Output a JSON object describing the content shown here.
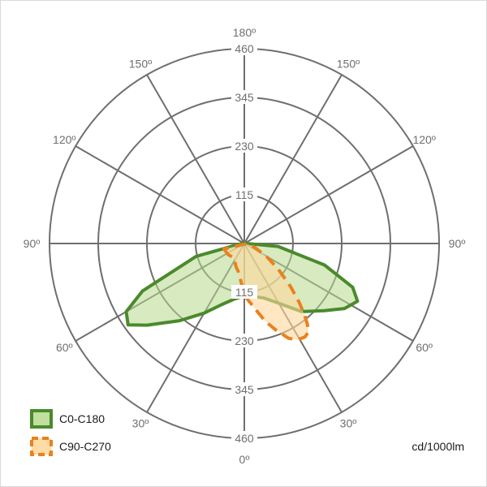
{
  "chart_data": {
    "type": "polar",
    "unit": "cd/1000lm",
    "radial_axis": {
      "max": 460,
      "ticks": [
        115,
        230,
        345,
        460
      ]
    },
    "angle_ticks": [
      {
        "angle": 180,
        "label": "180º",
        "side": "top"
      },
      {
        "angle": 150,
        "label": "150º",
        "side": "left"
      },
      {
        "angle": 150,
        "label": "150º",
        "side": "right"
      },
      {
        "angle": 120,
        "label": "120º",
        "side": "left"
      },
      {
        "angle": 120,
        "label": "120º",
        "side": "right"
      },
      {
        "angle": 90,
        "label": "90º",
        "side": "left"
      },
      {
        "angle": 90,
        "label": "90º",
        "side": "right"
      },
      {
        "angle": 60,
        "label": "60º",
        "side": "left"
      },
      {
        "angle": 60,
        "label": "60º",
        "side": "right"
      },
      {
        "angle": 30,
        "label": "30º",
        "side": "left"
      },
      {
        "angle": 30,
        "label": "30º",
        "side": "right"
      },
      {
        "angle": 0,
        "label": "0º",
        "side": "bottom"
      }
    ],
    "series": [
      {
        "name": "C0-C180",
        "stroke": "#4a8a2c",
        "fill": "#b6d98d",
        "fill_opacity": 0.55,
        "dashed": false,
        "points": [
          {
            "angle": -90,
            "value": 6
          },
          {
            "angle": -75,
            "value": 118
          },
          {
            "angle": -65,
            "value": 265
          },
          {
            "angle": -60,
            "value": 322
          },
          {
            "angle": -55,
            "value": 335
          },
          {
            "angle": -50,
            "value": 300
          },
          {
            "angle": -40,
            "value": 238
          },
          {
            "angle": -30,
            "value": 190
          },
          {
            "angle": -20,
            "value": 153
          },
          {
            "angle": -10,
            "value": 133
          },
          {
            "angle": 0,
            "value": 124
          },
          {
            "angle": 10,
            "value": 127
          },
          {
            "angle": 20,
            "value": 137
          },
          {
            "angle": 30,
            "value": 163
          },
          {
            "angle": 40,
            "value": 210
          },
          {
            "angle": 50,
            "value": 247
          },
          {
            "angle": 57,
            "value": 282
          },
          {
            "angle": 63,
            "value": 300
          },
          {
            "angle": 68,
            "value": 276
          },
          {
            "angle": 75,
            "value": 196
          },
          {
            "angle": 85,
            "value": 80
          },
          {
            "angle": 90,
            "value": 6
          }
        ]
      },
      {
        "name": "C90-C270",
        "stroke": "#e8821e",
        "fill": "#ffd79b",
        "fill_opacity": 0.6,
        "dashed": true,
        "points": [
          {
            "angle": -75,
            "value": 50
          },
          {
            "angle": -55,
            "value": 46
          },
          {
            "angle": -35,
            "value": 42
          },
          {
            "angle": -20,
            "value": 58
          },
          {
            "angle": -12,
            "value": 68
          },
          {
            "angle": -3,
            "value": 100
          },
          {
            "angle": 2,
            "value": 128
          },
          {
            "angle": 8,
            "value": 150
          },
          {
            "angle": 15,
            "value": 190
          },
          {
            "angle": 20,
            "value": 217
          },
          {
            "angle": 25,
            "value": 247
          },
          {
            "angle": 29,
            "value": 260
          },
          {
            "angle": 33,
            "value": 263
          },
          {
            "angle": 36,
            "value": 258
          },
          {
            "angle": 38,
            "value": 242
          },
          {
            "angle": 40,
            "value": 222
          },
          {
            "angle": 43,
            "value": 190
          },
          {
            "angle": 47,
            "value": 150
          },
          {
            "angle": 53,
            "value": 100
          },
          {
            "angle": 60,
            "value": 60
          },
          {
            "angle": 70,
            "value": 25
          },
          {
            "angle": 85,
            "value": 5
          }
        ]
      }
    ]
  }
}
